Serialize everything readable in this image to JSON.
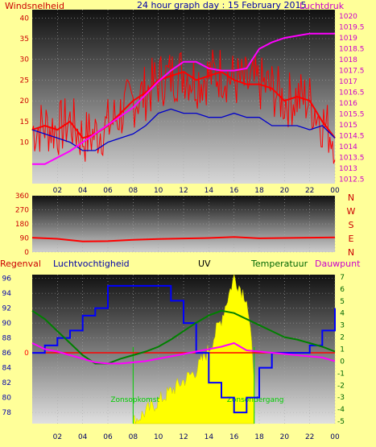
{
  "colors": {
    "background": "#ffff99",
    "wind": "#ff0000",
    "gust_line": "#0000cc",
    "pressure": "#ff00ff",
    "humidity": "#0000ff",
    "temperature": "#008000",
    "dewpoint": "#ff00ff",
    "uv": "#ffff00",
    "rain_zero": "#ff0000",
    "sunrise_text": "#00cc00"
  },
  "chart_data": [
    {
      "type": "line",
      "title": "24 hour graph day : 15 February 2015",
      "left_label": "Windsnelheid",
      "right_label": "Luchtdruk",
      "x_ticks": [
        "02",
        "04",
        "06",
        "08",
        "10",
        "12",
        "14",
        "16",
        "18",
        "20",
        "22",
        "00"
      ],
      "y_left_ticks": [
        "10",
        "15",
        "20",
        "25",
        "30",
        "35",
        "40"
      ],
      "y_left_range": [
        0,
        42
      ],
      "y_right_ticks": [
        "1012.5",
        "1013",
        "1013.5",
        "1014",
        "1014.5",
        "1015",
        "1015.5",
        "1016",
        "1016.5",
        "1017",
        "1017.5",
        "1018",
        "1018.5",
        "1019",
        "1019.5",
        "1020"
      ],
      "y_right_range": [
        1012.3,
        1020.3
      ],
      "x": [
        0,
        1,
        2,
        3,
        4,
        5,
        6,
        7,
        8,
        9,
        10,
        11,
        12,
        13,
        14,
        15,
        16,
        17,
        18,
        19,
        20,
        21,
        22,
        23,
        24
      ],
      "series": [
        {
          "values": [
            13,
            14,
            13,
            15,
            11,
            12,
            14,
            17,
            20,
            22,
            25,
            26,
            27,
            25,
            26,
            27,
            25,
            24,
            24,
            23,
            20,
            21,
            20,
            15,
            11
          ]
        },
        {
          "values": [
            13,
            12,
            11,
            10,
            8,
            8,
            10,
            11,
            12,
            14,
            17,
            18,
            17,
            17,
            16,
            16,
            17,
            16,
            16,
            14,
            14,
            14,
            13,
            14,
            11
          ]
        },
        {
          "values": [
            1013.2,
            1013.2,
            1013.5,
            1013.8,
            1014.2,
            1014.6,
            1015,
            1015.4,
            1015.8,
            1016.4,
            1017,
            1017.5,
            1017.9,
            1017.9,
            1017.6,
            1017.5,
            1017.5,
            1017.6,
            1018.5,
            1018.8,
            1019.0,
            1019.1,
            1019.2,
            1019.2,
            1019.2
          ]
        }
      ],
      "grid": true
    },
    {
      "type": "line",
      "right_letters": [
        "N",
        "W",
        "S",
        "E",
        "N"
      ],
      "x_ticks": [
        "02",
        "04",
        "06",
        "08",
        "10",
        "12",
        "14",
        "16",
        "18",
        "20",
        "22",
        "00"
      ],
      "y_ticks": [
        "0",
        "90",
        "180",
        "270",
        "360"
      ],
      "y_range": [
        0,
        360
      ],
      "x": [
        0,
        2,
        4,
        6,
        8,
        10,
        12,
        14,
        16,
        18,
        20,
        22,
        24
      ],
      "series": [
        {
          "values": [
            92,
            85,
            68,
            70,
            78,
            84,
            87,
            90,
            96,
            88,
            90,
            92,
            94
          ]
        }
      ]
    },
    {
      "type": "line",
      "legend": [
        "Regenval",
        "Luchtvochtigheid",
        "UV",
        "Temperatuur",
        "Dauwpunt"
      ],
      "x_ticks": [
        "02",
        "04",
        "06",
        "08",
        "10",
        "12",
        "14",
        "16",
        "18",
        "20",
        "22",
        "00"
      ],
      "y_left_ticks": [
        "78",
        "80",
        "82",
        "84",
        "86",
        "88",
        "90",
        "92",
        "94",
        "96"
      ],
      "y_left_range": [
        76.5,
        96.5
      ],
      "y_right_ticks": [
        "-5",
        "-4",
        "-3",
        "-2",
        "-1",
        "0",
        "1",
        "2",
        "3",
        "4",
        "5",
        "6",
        "7"
      ],
      "y_right_range": [
        -5.2,
        7.2
      ],
      "rain_zero_label": "0",
      "sunrise_label": "Zonsopkomst",
      "sunset_label": "Zonsondergang",
      "x": [
        0,
        1,
        2,
        3,
        4,
        5,
        6,
        7,
        8,
        9,
        10,
        11,
        12,
        13,
        14,
        15,
        16,
        17,
        18,
        19,
        20,
        21,
        22,
        23,
        24
      ],
      "series": [
        {
          "values": [
            86,
            87,
            88,
            89,
            91,
            92,
            95,
            95,
            95,
            95,
            95,
            93,
            90,
            86,
            82,
            80,
            78,
            80,
            84,
            86,
            86,
            86,
            87,
            89,
            92
          ]
        },
        {
          "values": [
            4.2,
            3.5,
            2.5,
            1.5,
            0.5,
            -0.2,
            -0.2,
            0.2,
            0.5,
            0.8,
            1.2,
            1.8,
            2.5,
            3.2,
            3.8,
            4.2,
            4.0,
            3.5,
            3.0,
            2.5,
            2.0,
            1.8,
            1.5,
            1.2,
            0.8
          ]
        },
        {
          "values": [
            1.5,
            1.0,
            0.8,
            0.5,
            0.2,
            -0.1,
            -0.2,
            -0.2,
            -0.1,
            0,
            0.2,
            0.4,
            0.6,
            0.8,
            1.0,
            1.2,
            1.5,
            0.9,
            0.8,
            0.7,
            0.6,
            0.5,
            0.4,
            0.3,
            0.0
          ]
        },
        {
          "values": [
            0,
            0,
            0,
            0,
            0,
            0,
            0,
            0,
            0,
            0.5,
            1,
            1.5,
            2,
            2.5,
            3.5,
            5,
            7,
            6,
            0,
            0,
            0,
            0,
            0,
            0,
            0
          ]
        }
      ]
    }
  ]
}
